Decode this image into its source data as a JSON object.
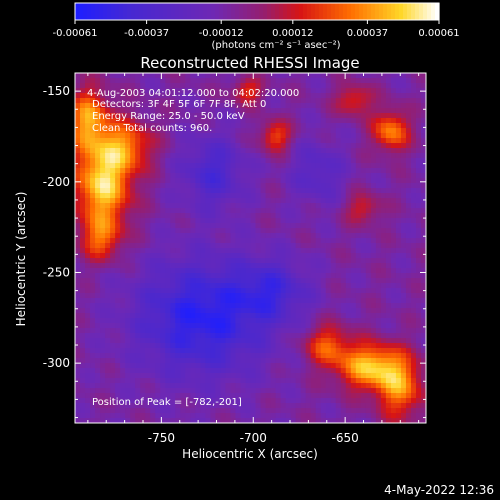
{
  "chart_data": {
    "type": "heatmap",
    "title": "Reconstructed RHESSI Image",
    "xlabel": "Heliocentric X (arcsec)",
    "ylabel": "Heliocentric Y (arcsec)",
    "xlim": [
      -797,
      -606
    ],
    "ylim": [
      -333,
      -140
    ],
    "x_ticks": [
      -750,
      -700,
      -650
    ],
    "y_ticks": [
      -150,
      -200,
      -250,
      -300
    ],
    "colorbar": {
      "min": -0.00061,
      "max": 0.00061,
      "ticks": [
        "-0.00061",
        "-0.00037",
        "-0.00012",
        "0.00012",
        "0.00037",
        "0.00061"
      ],
      "units_label": "(photons cm⁻² s⁻¹ asec⁻²)"
    },
    "annotations": [
      "4-Aug-2003 04:01:12.000 to 04:02:20.000",
      "Detectors: 3F 4F 5F 6F 7F 8F, Att 0",
      "Energy Range: 25.0 - 50.0 keV",
      "Clean    Total counts: 960.",
      "Position of Peak = [-782,-201]"
    ],
    "peak": {
      "x": -782,
      "y": -201
    },
    "sources": [
      {
        "x": -782,
        "y": -201,
        "sx": 11,
        "sy": 18,
        "amp": 0.00061
      },
      {
        "x": -790,
        "y": -165,
        "sx": 8,
        "sy": 12,
        "amp": 0.00045
      },
      {
        "x": -768,
        "y": -180,
        "sx": 10,
        "sy": 10,
        "amp": 0.00035
      },
      {
        "x": -783,
        "y": -232,
        "sx": 8,
        "sy": 8,
        "amp": 0.0003
      },
      {
        "x": -636,
        "y": -302,
        "sx": 13,
        "sy": 9,
        "amp": 0.00055
      },
      {
        "x": -620,
        "y": -315,
        "sx": 9,
        "sy": 12,
        "amp": 0.0004
      },
      {
        "x": -660,
        "y": -290,
        "sx": 9,
        "sy": 8,
        "amp": 0.00035
      },
      {
        "x": -625,
        "y": -172,
        "sx": 7,
        "sy": 8,
        "amp": 0.00045
      },
      {
        "x": -645,
        "y": -155,
        "sx": 7,
        "sy": 6,
        "amp": 0.0003
      },
      {
        "x": -688,
        "y": -175,
        "sx": 6,
        "sy": 6,
        "amp": 0.00035
      },
      {
        "x": -703,
        "y": -150,
        "sx": 6,
        "sy": 5,
        "amp": 0.0003
      },
      {
        "x": -640,
        "y": -215,
        "sx": 7,
        "sy": 6,
        "amp": 0.00025
      },
      {
        "x": -728,
        "y": -275,
        "sx": 25,
        "sy": 22,
        "amp": -0.00045
      },
      {
        "x": -722,
        "y": -195,
        "sx": 12,
        "sy": 14,
        "amp": -0.0003
      },
      {
        "x": -690,
        "y": -260,
        "sx": 14,
        "sy": 12,
        "amp": -0.00028
      },
      {
        "x": -665,
        "y": -195,
        "sx": 10,
        "sy": 12,
        "amp": -0.00022
      }
    ]
  },
  "footer": {
    "date": "4-May-2022 12:36"
  }
}
